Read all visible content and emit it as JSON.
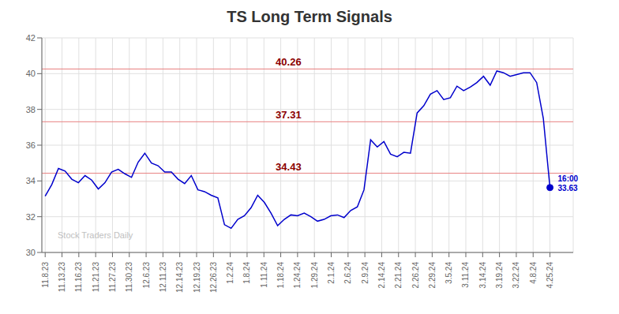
{
  "chart_data": {
    "type": "line",
    "title": "TS Long Term Signals",
    "color": "#0000cc",
    "x": [
      0,
      1,
      2,
      3,
      4,
      5,
      6,
      7,
      8,
      9,
      10,
      11,
      12,
      13,
      14,
      15,
      16,
      17,
      18,
      19,
      20,
      21,
      22,
      23,
      24,
      25,
      26,
      27,
      28,
      29,
      30,
      31,
      32,
      33,
      34,
      35,
      36,
      37,
      38,
      39,
      40,
      41,
      42,
      43,
      44,
      45,
      46,
      47,
      48,
      49,
      50,
      51,
      52,
      53,
      54,
      55,
      56,
      57,
      58,
      59,
      60,
      61,
      62,
      63,
      64,
      65,
      66,
      67,
      68,
      69,
      70,
      71,
      72,
      73,
      74,
      75,
      76
    ],
    "values": [
      33.15,
      33.8,
      34.7,
      34.55,
      34.1,
      33.9,
      34.3,
      34.05,
      33.55,
      33.9,
      34.5,
      34.65,
      34.4,
      34.2,
      35.05,
      35.55,
      35.0,
      34.85,
      34.5,
      34.5,
      34.1,
      33.85,
      34.3,
      33.5,
      33.4,
      33.2,
      33.05,
      31.55,
      31.35,
      31.85,
      32.05,
      32.5,
      33.2,
      32.8,
      32.2,
      31.5,
      31.85,
      32.1,
      32.05,
      32.2,
      32.0,
      31.75,
      31.85,
      32.05,
      32.1,
      31.95,
      32.35,
      32.55,
      33.5,
      36.3,
      35.9,
      36.2,
      35.5,
      35.35,
      35.6,
      35.55,
      37.8,
      38.2,
      38.85,
      39.05,
      38.55,
      38.65,
      39.3,
      39.05,
      39.25,
      39.5,
      39.85,
      39.35,
      40.15,
      40.05,
      39.85,
      39.95,
      40.05,
      40.05,
      39.5,
      37.5,
      33.63
    ],
    "xlim": [
      -0.5,
      79.5
    ],
    "xticks": [
      {
        "value": 0,
        "label": "11.8.23"
      },
      {
        "value": 2.533333,
        "label": "11.13.23"
      },
      {
        "value": 5.066667,
        "label": "11.16.23"
      },
      {
        "value": 7.6,
        "label": "11.21.23"
      },
      {
        "value": 10.133333,
        "label": "11.27.23"
      },
      {
        "value": 12.666667,
        "label": "11.30.23"
      },
      {
        "value": 15.2,
        "label": "12.6.23"
      },
      {
        "value": 17.733333,
        "label": "12.11.23"
      },
      {
        "value": 20.266667,
        "label": "12.14.23"
      },
      {
        "value": 22.8,
        "label": "12.19.23"
      },
      {
        "value": 25.333333,
        "label": "12.26.23"
      },
      {
        "value": 27.866667,
        "label": "1.2.24"
      },
      {
        "value": 30.4,
        "label": "1.8.24"
      },
      {
        "value": 32.933333,
        "label": "1.11.24"
      },
      {
        "value": 35.466667,
        "label": "1.18.24"
      },
      {
        "value": 38,
        "label": "1.24.24"
      },
      {
        "value": 40.533333,
        "label": "1.29.24"
      },
      {
        "value": 43.066667,
        "label": "2.1.24"
      },
      {
        "value": 45.6,
        "label": "2.6.24"
      },
      {
        "value": 48.133333,
        "label": "2.9.24"
      },
      {
        "value": 50.666667,
        "label": "2.14.24"
      },
      {
        "value": 53.2,
        "label": "2.21.24"
      },
      {
        "value": 55.733333,
        "label": "2.26.24"
      },
      {
        "value": 58.266667,
        "label": "2.29.24"
      },
      {
        "value": 60.8,
        "label": "3.5.24"
      },
      {
        "value": 63.333333,
        "label": "3.11.24"
      },
      {
        "value": 65.866667,
        "label": "3.14.24"
      },
      {
        "value": 68.4,
        "label": "3.19.24"
      },
      {
        "value": 70.933333,
        "label": "3.22.24"
      },
      {
        "value": 73.466667,
        "label": "4.8.24"
      },
      {
        "value": 76,
        "label": "4.25.24"
      }
    ],
    "ylim": [
      30,
      42
    ],
    "yticks": [
      30,
      32,
      34,
      36,
      38,
      40,
      42
    ],
    "grid": true,
    "hlines": [
      {
        "value": 40.26,
        "label": "40.26",
        "color": "#e88080",
        "label_color": "#8b0000"
      },
      {
        "value": 37.31,
        "label": "37.31",
        "color": "#e88080",
        "label_color": "#8b0000"
      },
      {
        "value": 34.43,
        "label": "34.43",
        "color": "#e88080",
        "label_color": "#8b0000"
      }
    ],
    "annotations": [
      {
        "text": "16:00\n33.63",
        "x": 76,
        "y": 33.63,
        "color": "#0000cc"
      },
      {
        "text": "Stock Traders Daily",
        "color": "#c0c0c0"
      }
    ]
  }
}
